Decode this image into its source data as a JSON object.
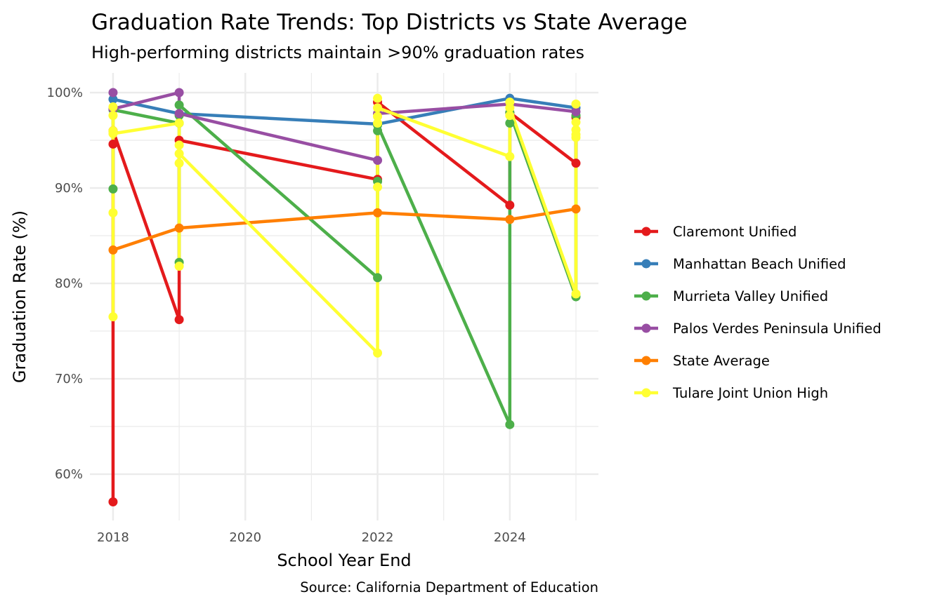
{
  "chart_data": {
    "type": "line",
    "title": "Graduation Rate Trends: Top Districts vs State Average",
    "subtitle": "High-performing districts maintain >90% graduation rates",
    "xlabel": "School Year End",
    "ylabel": "Graduation Rate (%)",
    "caption": "Source: California Department of Education",
    "xlim": [
      2017.65,
      2025.34
    ],
    "ylim": [
      55.15,
      102.06
    ],
    "x_ticks": [
      2018,
      2020,
      2022,
      2024
    ],
    "x_tick_labels": [
      "2018",
      "2020",
      "2022",
      "2024"
    ],
    "y_ticks": [
      60,
      70,
      80,
      90,
      100
    ],
    "y_tick_labels": [
      "60%",
      "70%",
      "80%",
      "90%",
      "100%"
    ],
    "grid": true,
    "legend_position": "right",
    "series": [
      {
        "name": "Claremont Unified",
        "color": "#E41A1C",
        "points": [
          [
            2018,
            94.6
          ],
          [
            2018,
            57.1
          ],
          [
            2018,
            96.0
          ],
          [
            2019,
            76.2
          ],
          [
            2019,
            95.0
          ],
          [
            2022,
            90.9
          ],
          [
            2022,
            99.0
          ],
          [
            2024,
            88.2
          ],
          [
            2024,
            97.9
          ],
          [
            2025,
            92.6
          ],
          [
            2025,
            97.4
          ]
        ]
      },
      {
        "name": "Manhattan Beach Unified",
        "color": "#377EB8",
        "points": [
          [
            2018,
            99.3
          ],
          [
            2019,
            97.8
          ],
          [
            2022,
            96.7
          ],
          [
            2024,
            99.4
          ],
          [
            2025,
            98.4
          ]
        ]
      },
      {
        "name": "Murrieta Valley Unified",
        "color": "#4DAF4A",
        "points": [
          [
            2018,
            89.9
          ],
          [
            2018,
            98.2
          ],
          [
            2019,
            96.8
          ],
          [
            2019,
            82.2
          ],
          [
            2019,
            97.6
          ],
          [
            2019,
            98.7
          ],
          [
            2022,
            80.6
          ],
          [
            2022,
            90.7
          ],
          [
            2022,
            96.0
          ],
          [
            2022,
            96.6
          ],
          [
            2024,
            65.2
          ],
          [
            2024,
            96.8
          ],
          [
            2024,
            97.9
          ],
          [
            2025,
            78.6
          ],
          [
            2025,
            97.6
          ]
        ]
      },
      {
        "name": "Palos Verdes Peninsula Unified",
        "color": "#984EA3",
        "points": [
          [
            2018,
            100.0
          ],
          [
            2018,
            98.3
          ],
          [
            2019,
            100.0
          ],
          [
            2019,
            97.8
          ],
          [
            2022,
            92.9
          ],
          [
            2022,
            97.8
          ],
          [
            2024,
            98.8
          ],
          [
            2025,
            98.0
          ]
        ]
      },
      {
        "name": "State Average",
        "color": "#FF7F00",
        "points": [
          [
            2018,
            83.5
          ],
          [
            2019,
            85.8
          ],
          [
            2022,
            87.4
          ],
          [
            2024,
            86.7
          ],
          [
            2025,
            87.8
          ]
        ]
      },
      {
        "name": "Tulare Joint Union High",
        "color": "#FFFF33",
        "points": [
          [
            2018,
            98.5
          ],
          [
            2018,
            97.6
          ],
          [
            2018,
            96.0
          ],
          [
            2018,
            87.4
          ],
          [
            2018,
            76.5
          ],
          [
            2018,
            95.7
          ],
          [
            2019,
            96.8
          ],
          [
            2019,
            94.5
          ],
          [
            2019,
            81.8
          ],
          [
            2019,
            92.6
          ],
          [
            2019,
            93.6
          ],
          [
            2022,
            72.7
          ],
          [
            2022,
            90.1
          ],
          [
            2022,
            96.8
          ],
          [
            2022,
            97.5
          ],
          [
            2022,
            99.4
          ],
          [
            2022,
            98.4
          ],
          [
            2024,
            93.3
          ],
          [
            2024,
            97.6
          ],
          [
            2024,
            99.0
          ],
          [
            2024,
            98.4
          ],
          [
            2025,
            78.9
          ],
          [
            2025,
            95.3
          ],
          [
            2025,
            95.6
          ],
          [
            2025,
            96.9
          ],
          [
            2025,
            98.8
          ],
          [
            2025,
            96.1
          ]
        ]
      }
    ]
  }
}
